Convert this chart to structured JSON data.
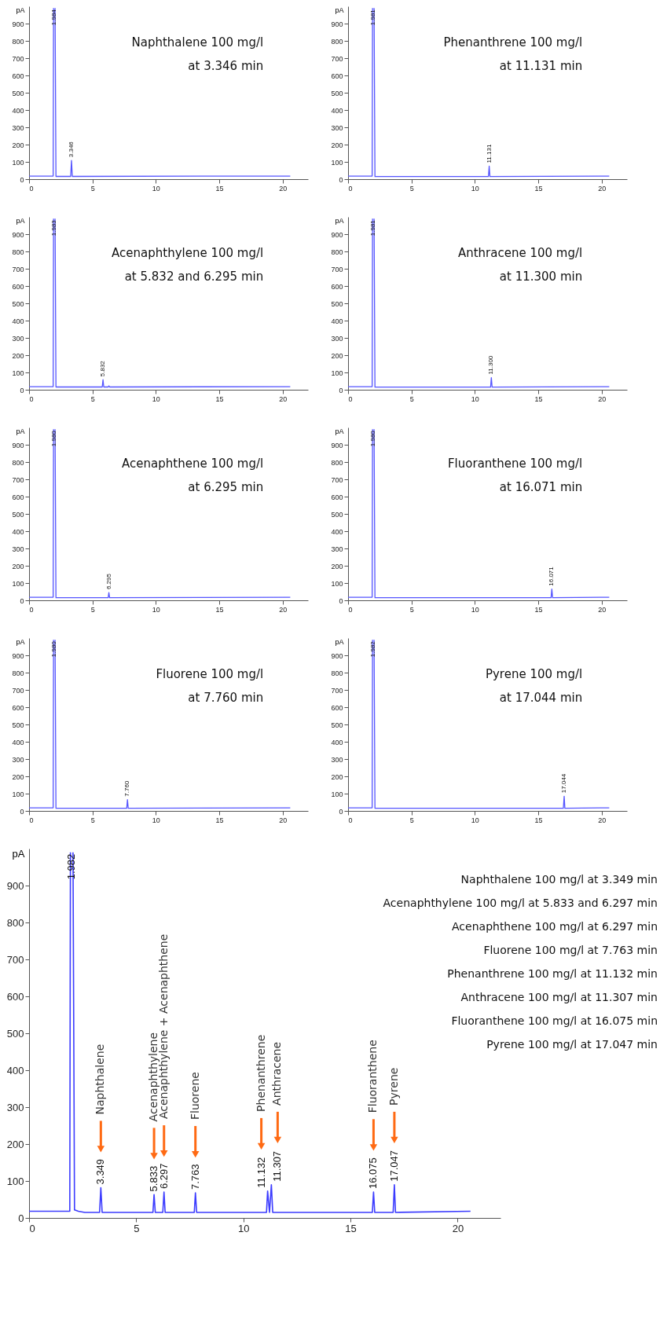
{
  "chart_data": [
    {
      "type": "line",
      "ylabel": "pA",
      "xlim": [
        0,
        22
      ],
      "xticks": [
        0,
        5,
        10,
        15,
        20
      ],
      "ylim": [
        0,
        1000
      ],
      "yticks": [
        0,
        100,
        200,
        300,
        400,
        500,
        600,
        700,
        800,
        900
      ],
      "grid": false,
      "series": [
        {
          "color": "#5555ff",
          "x": [
            0,
            1.9,
            1.93,
            1.95,
            2.03,
            2.05,
            2.12,
            3.28,
            3.346,
            3.41,
            20.6
          ],
          "values": [
            18,
            18,
            990,
            null,
            null,
            990,
            16,
            16,
            108,
            16,
            18
          ]
        }
      ],
      "annotations": [
        "Naphthalene 100 mg/l",
        "at 3.346 min",
        {
          "text": "1.984",
          "x": 1.984,
          "y": 990
        },
        {
          "text": "3.346",
          "x": 3.346,
          "y": 108
        }
      ]
    },
    {
      "type": "line",
      "ylabel": "pA",
      "xlim": [
        0,
        22
      ],
      "xticks": [
        0,
        5,
        10,
        15,
        20
      ],
      "ylim": [
        0,
        1000
      ],
      "yticks": [
        0,
        100,
        200,
        300,
        400,
        500,
        600,
        700,
        800,
        900
      ],
      "grid": false,
      "series": [
        {
          "color": "#5555ff",
          "x": [
            0,
            1.9,
            1.93,
            1.95,
            2.03,
            2.05,
            2.12,
            11.07,
            11.131,
            11.19,
            20.6
          ],
          "values": [
            18,
            18,
            990,
            null,
            null,
            990,
            15,
            15,
            75,
            15,
            18
          ]
        }
      ],
      "annotations": [
        "Phenanthrene 100 mg/l",
        "at 11.131 min",
        {
          "text": "1.981",
          "x": 1.981,
          "y": 990
        },
        {
          "text": "11.131",
          "x": 11.131,
          "y": 75
        }
      ]
    },
    {
      "type": "line",
      "ylabel": "pA",
      "xlim": [
        0,
        22
      ],
      "xticks": [
        0,
        5,
        10,
        15,
        20
      ],
      "ylim": [
        0,
        1000
      ],
      "yticks": [
        0,
        100,
        200,
        300,
        400,
        500,
        600,
        700,
        800,
        900
      ],
      "grid": false,
      "series": [
        {
          "color": "#5555ff",
          "x": [
            0,
            1.9,
            1.93,
            1.95,
            2.03,
            2.05,
            2.12,
            5.77,
            5.832,
            5.89,
            6.24,
            6.295,
            6.35,
            20.6
          ],
          "values": [
            18,
            18,
            990,
            null,
            null,
            990,
            16,
            16,
            58,
            16,
            16,
            22,
            16,
            18
          ]
        }
      ],
      "annotations": [
        "Acenaphthylene 100 mg/l",
        "at 5.832 and 6.295 min",
        {
          "text": "1.983",
          "x": 1.983,
          "y": 990
        },
        {
          "text": "5.832",
          "x": 5.832,
          "y": 58
        }
      ]
    },
    {
      "type": "line",
      "ylabel": "pA",
      "xlim": [
        0,
        22
      ],
      "xticks": [
        0,
        5,
        10,
        15,
        20
      ],
      "ylim": [
        0,
        1000
      ],
      "yticks": [
        0,
        100,
        200,
        300,
        400,
        500,
        600,
        700,
        800,
        900
      ],
      "grid": false,
      "series": [
        {
          "color": "#5555ff",
          "x": [
            0,
            1.9,
            1.93,
            1.95,
            2.03,
            2.05,
            2.12,
            11.24,
            11.3,
            11.36,
            20.6
          ],
          "values": [
            18,
            18,
            990,
            null,
            null,
            990,
            15,
            15,
            70,
            15,
            18
          ]
        }
      ],
      "annotations": [
        "Anthracene 100 mg/l",
        "at 11.300 min",
        {
          "text": "1.981",
          "x": 1.981,
          "y": 990
        },
        {
          "text": "11.300",
          "x": 11.3,
          "y": 70
        }
      ]
    },
    {
      "type": "line",
      "ylabel": "pA",
      "xlim": [
        0,
        22
      ],
      "xticks": [
        0,
        5,
        10,
        15,
        20
      ],
      "ylim": [
        0,
        1000
      ],
      "yticks": [
        0,
        100,
        200,
        300,
        400,
        500,
        600,
        700,
        800,
        900
      ],
      "grid": false,
      "series": [
        {
          "color": "#5555ff",
          "x": [
            0,
            1.9,
            1.93,
            1.95,
            2.03,
            2.05,
            2.12,
            6.24,
            6.295,
            6.35,
            20.6
          ],
          "values": [
            18,
            18,
            990,
            null,
            null,
            990,
            15,
            15,
            45,
            15,
            18
          ]
        }
      ],
      "annotations": [
        "Acenaphthene 100 mg/l",
        "at 6.295 min",
        {
          "text": "1.980",
          "x": 1.98,
          "y": 990
        },
        {
          "text": "6.295",
          "x": 6.295,
          "y": 45
        }
      ]
    },
    {
      "type": "line",
      "ylabel": "pA",
      "xlim": [
        0,
        22
      ],
      "xticks": [
        0,
        5,
        10,
        15,
        20
      ],
      "ylim": [
        0,
        1000
      ],
      "yticks": [
        0,
        100,
        200,
        300,
        400,
        500,
        600,
        700,
        800,
        900
      ],
      "grid": false,
      "series": [
        {
          "color": "#5555ff",
          "x": [
            0,
            1.9,
            1.93,
            1.95,
            2.03,
            2.05,
            2.12,
            16.01,
            16.071,
            16.13,
            20.6
          ],
          "values": [
            18,
            18,
            990,
            null,
            null,
            990,
            15,
            15,
            65,
            15,
            18
          ]
        }
      ],
      "annotations": [
        "Fluoranthene 100 mg/l",
        "at 16.071 min",
        {
          "text": "1.980",
          "x": 1.98,
          "y": 990
        },
        {
          "text": "16.071",
          "x": 16.071,
          "y": 65
        }
      ]
    },
    {
      "type": "line",
      "ylabel": "pA",
      "xlim": [
        0,
        22
      ],
      "xticks": [
        0,
        5,
        10,
        15,
        20
      ],
      "ylim": [
        0,
        1000
      ],
      "yticks": [
        0,
        100,
        200,
        300,
        400,
        500,
        600,
        700,
        800,
        900
      ],
      "grid": false,
      "series": [
        {
          "color": "#5555ff",
          "x": [
            0,
            1.9,
            1.93,
            1.95,
            2.03,
            2.05,
            2.12,
            7.7,
            7.76,
            7.82,
            20.6
          ],
          "values": [
            18,
            18,
            990,
            null,
            null,
            990,
            15,
            15,
            65,
            15,
            18
          ]
        }
      ],
      "annotations": [
        "Fluorene 100 mg/l",
        "at 7.760 min",
        {
          "text": "1.980",
          "x": 1.98,
          "y": 990
        },
        {
          "text": "7.760",
          "x": 7.76,
          "y": 65
        }
      ]
    },
    {
      "type": "line",
      "ylabel": "pA",
      "xlim": [
        0,
        22
      ],
      "xticks": [
        0,
        5,
        10,
        15,
        20
      ],
      "ylim": [
        0,
        1000
      ],
      "yticks": [
        0,
        100,
        200,
        300,
        400,
        500,
        600,
        700,
        800,
        900
      ],
      "grid": false,
      "series": [
        {
          "color": "#5555ff",
          "x": [
            0,
            1.9,
            1.93,
            1.95,
            2.03,
            2.05,
            2.12,
            16.98,
            17.044,
            17.1,
            20.6
          ],
          "values": [
            18,
            18,
            990,
            null,
            null,
            990,
            15,
            15,
            85,
            15,
            18
          ]
        }
      ],
      "annotations": [
        "Pyrene 100 mg/l",
        "at 17.044 min",
        {
          "text": "1.982",
          "x": 1.982,
          "y": 990
        },
        {
          "text": "17.044",
          "x": 17.044,
          "y": 85
        }
      ]
    },
    {
      "type": "line",
      "ylabel": "pA",
      "xlim": [
        0,
        22
      ],
      "xticks": [
        0,
        5,
        10,
        15,
        20
      ],
      "ylim": [
        0,
        1000
      ],
      "yticks": [
        0,
        100,
        200,
        300,
        400,
        500,
        600,
        700,
        800,
        900
      ],
      "grid": false,
      "series": [
        {
          "color": "#3c3cff",
          "x": [
            0,
            1.9,
            1.93,
            1.95,
            2.03,
            2.05,
            2.12,
            2.3,
            2.6,
            3.29,
            3.349,
            3.41,
            5.78,
            5.833,
            5.89,
            6.24,
            6.297,
            6.35,
            7.71,
            7.763,
            7.82,
            11.08,
            11.132,
            11.22,
            11.307,
            11.37,
            16.02,
            16.075,
            16.13,
            16.99,
            17.047,
            17.1,
            20.6
          ],
          "values": [
            18,
            18,
            990,
            null,
            null,
            990,
            22,
            18,
            15,
            15,
            82,
            15,
            15,
            63,
            15,
            15,
            70,
            15,
            15,
            68,
            15,
            15,
            73,
            15,
            90,
            15,
            15,
            70,
            15,
            15,
            90,
            15,
            18
          ]
        }
      ],
      "annotations": [
        "Naphthalene 100 mg/l at 3.349 min",
        "Acenaphthylene 100 mg/l at 5.833 and 6.297 min",
        "Acenaphthene 100 mg/l at 6.297 min",
        "Fluorene 100 mg/l at 7.763 min",
        "Phenanthrene 100 mg/l at 11.132 min",
        "Anthracene 100 mg/l at 11.307 min",
        "Fluoranthene 100 mg/l at 16.075 min",
        "Pyrene 100 mg/l at 17.047 min",
        {
          "text": "1.982",
          "x": 1.982,
          "y": 990
        },
        {
          "text": "3.349",
          "x": 3.349,
          "y": 82
        },
        "Naphthalene",
        {
          "text": "5.833",
          "x": 5.833,
          "y": 63
        },
        "Acenaphthylene",
        {
          "text": "6.297",
          "x": 6.297,
          "y": 70
        },
        "Acenaphthylene + Acenaphthene",
        {
          "text": "7.763",
          "x": 7.763,
          "y": 68
        },
        "Fluorene",
        {
          "text": "11.132",
          "x": 11.132,
          "y": 73
        },
        "Phenanthrene",
        {
          "text": "11.307",
          "x": 11.307,
          "y": 90
        },
        "Anthracene",
        {
          "text": "16.075",
          "x": 16.075,
          "y": 70
        },
        "Fluoranthene",
        {
          "text": "17.047",
          "x": 17.047,
          "y": 90
        },
        "Pyrene"
      ]
    }
  ]
}
